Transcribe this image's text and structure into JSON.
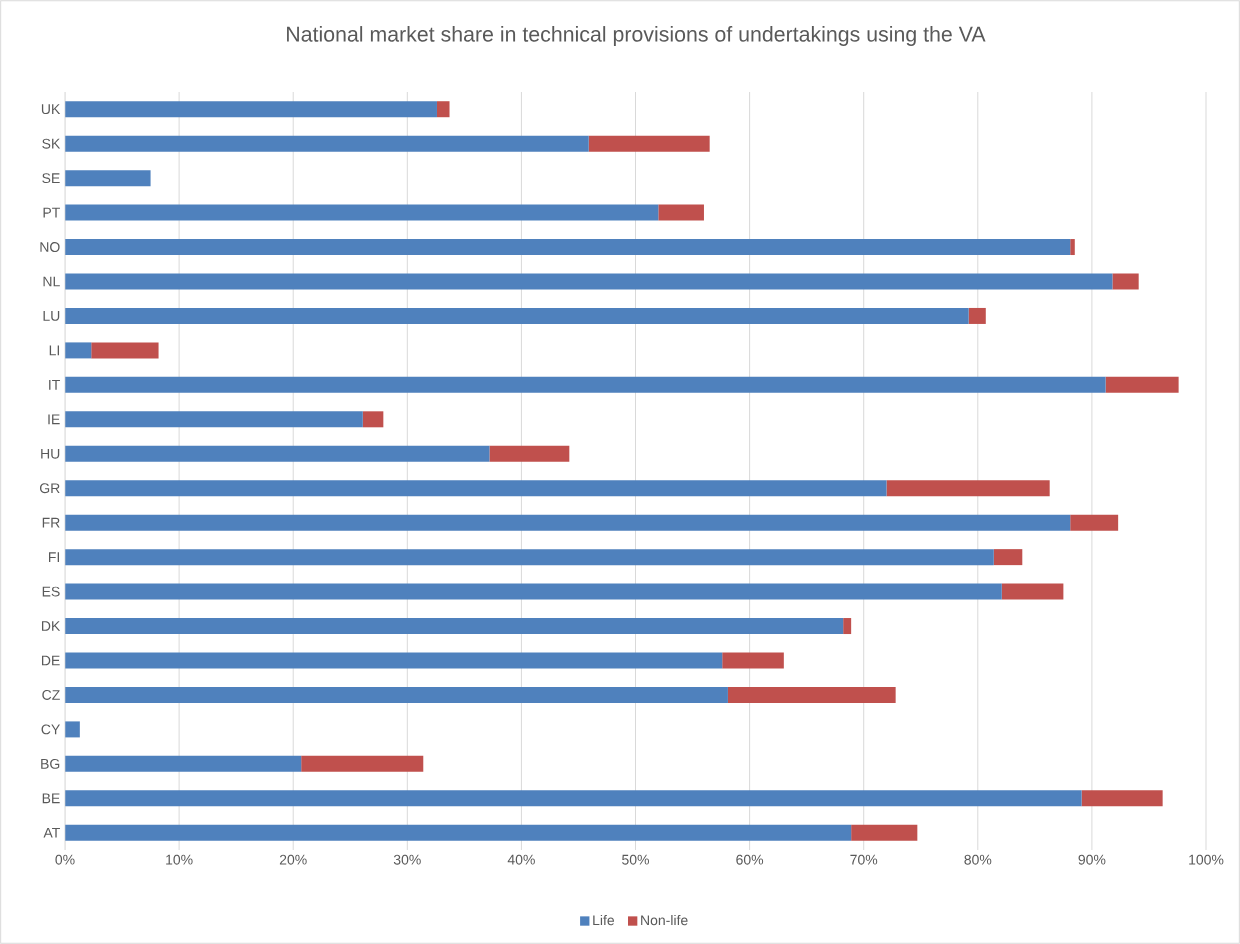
{
  "chart_data": {
    "type": "bar",
    "orientation": "horizontal",
    "stacked": true,
    "title": "National market share in technical provisions of undertakings using the VA",
    "categories": [
      "UK",
      "SK",
      "SE",
      "PT",
      "NO",
      "NL",
      "LU",
      "LI",
      "IT",
      "IE",
      "HU",
      "GR",
      "FR",
      "FI",
      "ES",
      "DK",
      "DE",
      "CZ",
      "CY",
      "BG",
      "BE",
      "AT"
    ],
    "series": [
      {
        "name": "Life",
        "color": "#4f81bd",
        "values": [
          32.6,
          45.9,
          7.5,
          52.0,
          88.1,
          91.8,
          79.2,
          2.3,
          91.2,
          26.1,
          37.2,
          72.0,
          88.1,
          81.4,
          82.1,
          68.2,
          57.6,
          58.1,
          1.3,
          20.7,
          89.1,
          68.9
        ]
      },
      {
        "name": "Non-life",
        "color": "#c0504d",
        "values": [
          1.1,
          10.6,
          0,
          4.0,
          0.4,
          2.3,
          1.5,
          5.9,
          6.4,
          1.8,
          7.0,
          14.3,
          4.2,
          2.5,
          5.4,
          0.7,
          5.4,
          14.7,
          0,
          10.7,
          7.1,
          5.8
        ]
      }
    ],
    "xlim": [
      0,
      100
    ],
    "xticks": [
      {
        "value": 0,
        "label": "0%"
      },
      {
        "value": 10,
        "label": "10%"
      },
      {
        "value": 20,
        "label": "20%"
      },
      {
        "value": 30,
        "label": "30%"
      },
      {
        "value": 40,
        "label": "40%"
      },
      {
        "value": 50,
        "label": "50%"
      },
      {
        "value": 60,
        "label": "60%"
      },
      {
        "value": 70,
        "label": "70%"
      },
      {
        "value": 80,
        "label": "80%"
      },
      {
        "value": 90,
        "label": "90%"
      },
      {
        "value": 100,
        "label": "100%"
      }
    ],
    "grid": "x",
    "legend": "bottom"
  }
}
